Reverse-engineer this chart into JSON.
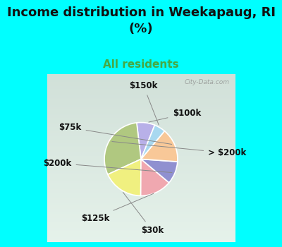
{
  "title": "Income distribution in Weekapaug, RI\n(%)",
  "subtitle": "All residents",
  "title_color": "#111111",
  "subtitle_color": "#44aa44",
  "bg_color": "#00ffff",
  "chart_bg": "#d8eee0",
  "watermark": "City-Data.com",
  "labels": [
    "$100k",
    "> $200k",
    "$30k",
    "$125k",
    "$200k",
    "$75k",
    "$150k"
  ],
  "sizes": [
    8,
    30,
    18,
    14,
    10,
    15,
    5
  ],
  "colors": [
    "#b8b0e8",
    "#b0c880",
    "#f0f080",
    "#f0a8b0",
    "#9090d0",
    "#f8c898",
    "#a8d8f0"
  ],
  "startangle": 68,
  "label_fontsize": 8.5,
  "title_fontsize": 13,
  "subtitle_fontsize": 11
}
